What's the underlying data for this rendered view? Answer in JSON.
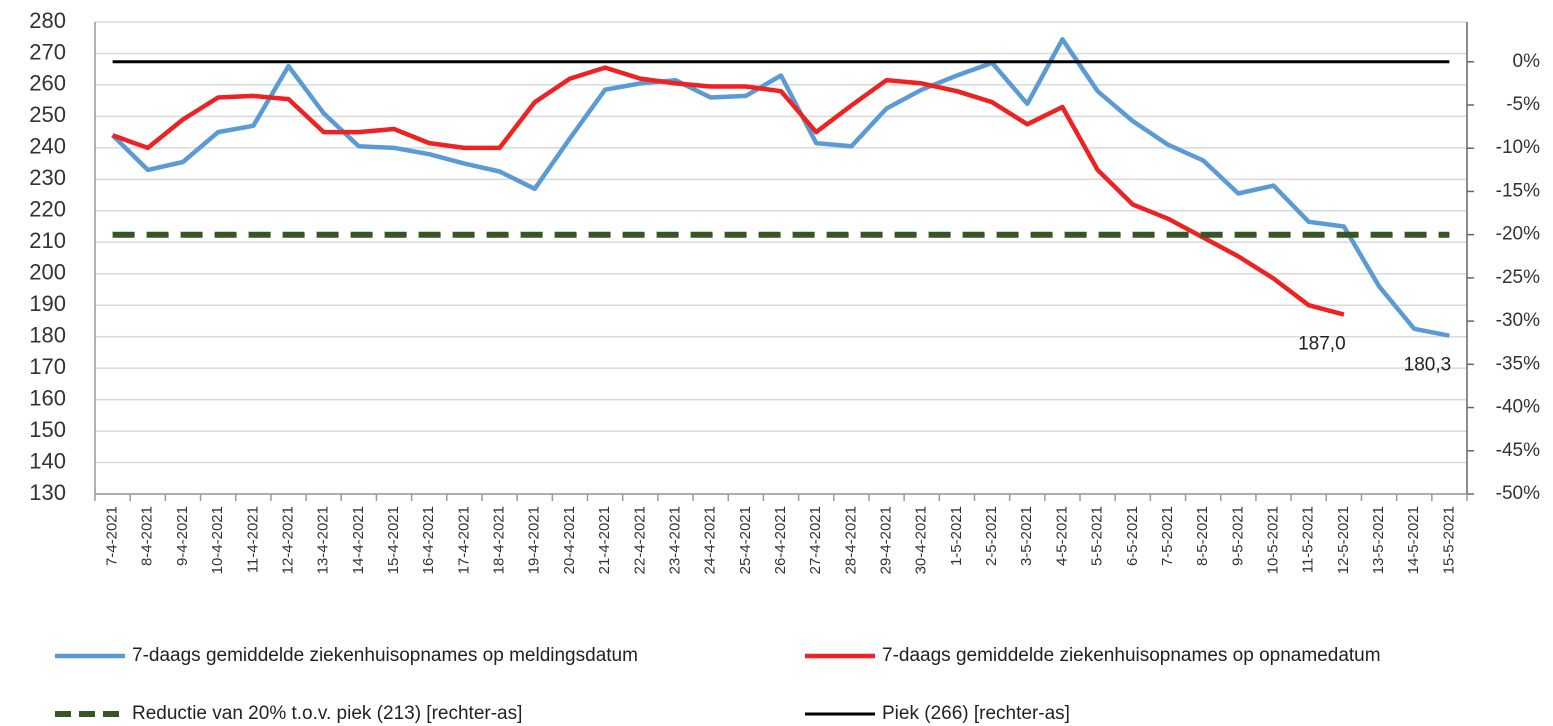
{
  "chart_data": {
    "type": "line",
    "categories": [
      "7-4-2021",
      "8-4-2021",
      "9-4-2021",
      "10-4-2021",
      "11-4-2021",
      "12-4-2021",
      "13-4-2021",
      "14-4-2021",
      "15-4-2021",
      "16-4-2021",
      "17-4-2021",
      "18-4-2021",
      "19-4-2021",
      "20-4-2021",
      "21-4-2021",
      "22-4-2021",
      "23-4-2021",
      "24-4-2021",
      "25-4-2021",
      "26-4-2021",
      "27-4-2021",
      "28-4-2021",
      "29-4-2021",
      "30-4-2021",
      "1-5-2021",
      "2-5-2021",
      "3-5-2021",
      "4-5-2021",
      "5-5-2021",
      "6-5-2021",
      "7-5-2021",
      "8-5-2021",
      "9-5-2021",
      "10-5-2021",
      "11-5-2021",
      "12-5-2021",
      "13-5-2021",
      "14-5-2021",
      "15-5-2021"
    ],
    "series": [
      {
        "name": "7-daags gemiddelde ziekenhuisopnames op meldingsdatum",
        "color": "#5b9bd5",
        "values": [
          244,
          233,
          235.5,
          245,
          247,
          266,
          251,
          240.5,
          240,
          238,
          235,
          232.5,
          227,
          243,
          258.5,
          260.5,
          261.5,
          256,
          256.5,
          263,
          241.5,
          240.5,
          252.5,
          258.5,
          263,
          267,
          254,
          274.5,
          258,
          248.5,
          241,
          236,
          225.5,
          228,
          216.5,
          215,
          196,
          182.5,
          180.3
        ],
        "value_labels": [
          null,
          null,
          null,
          null,
          null,
          null,
          null,
          null,
          null,
          null,
          null,
          null,
          null,
          null,
          null,
          null,
          null,
          null,
          null,
          null,
          null,
          null,
          null,
          null,
          null,
          null,
          null,
          null,
          null,
          null,
          null,
          null,
          null,
          null,
          null,
          null,
          null,
          null,
          "180,3"
        ]
      },
      {
        "name": "7-daags gemiddelde ziekenhuisopnames op opnamedatum",
        "color": "#ee2222",
        "values": [
          244,
          240,
          249,
          256,
          256.5,
          255.5,
          245,
          245,
          246,
          241.5,
          240,
          240,
          254.5,
          262,
          265.5,
          262,
          260.5,
          259.5,
          259.5,
          258,
          245,
          253.5,
          261.5,
          260.5,
          258,
          254.5,
          247.5,
          253,
          233,
          222,
          217.5,
          211.5,
          205.5,
          198.5,
          190,
          187.0,
          null,
          null,
          null
        ],
        "value_labels": [
          null,
          null,
          null,
          null,
          null,
          null,
          null,
          null,
          null,
          null,
          null,
          null,
          null,
          null,
          null,
          null,
          null,
          null,
          null,
          null,
          null,
          null,
          null,
          null,
          null,
          null,
          null,
          null,
          null,
          null,
          null,
          null,
          null,
          null,
          null,
          "187,0",
          null,
          null,
          null
        ]
      },
      {
        "name": "Reductie van 20% t.o.v. piek (213) [rechter-as]",
        "color": "#375623",
        "dashed": true,
        "axis": "y2",
        "values": [
          -20,
          -20,
          -20,
          -20,
          -20,
          -20,
          -20,
          -20,
          -20,
          -20,
          -20,
          -20,
          -20,
          -20,
          -20,
          -20,
          -20,
          -20,
          -20,
          -20,
          -20,
          -20,
          -20,
          -20,
          -20,
          -20,
          -20,
          -20,
          -20,
          -20,
          -20,
          -20,
          -20,
          -20,
          -20,
          -20,
          -20,
          -20,
          -20
        ]
      },
      {
        "name": "Piek (266) [rechter-as]",
        "color": "#000000",
        "axis": "y2",
        "values": [
          0,
          0,
          0,
          0,
          0,
          0,
          0,
          0,
          0,
          0,
          0,
          0,
          0,
          0,
          0,
          0,
          0,
          0,
          0,
          0,
          0,
          0,
          0,
          0,
          0,
          0,
          0,
          0,
          0,
          0,
          0,
          0,
          0,
          0,
          0,
          0,
          0,
          0,
          0
        ]
      }
    ],
    "ylim": [
      130,
      280
    ],
    "yticks": [
      130,
      140,
      150,
      160,
      170,
      180,
      190,
      200,
      210,
      220,
      230,
      240,
      250,
      260,
      270,
      280
    ],
    "y2lim": [
      -50,
      4.6
    ],
    "y2ticks": [
      {
        "value": -50,
        "label": "-50%"
      },
      {
        "value": -45,
        "label": "-45%"
      },
      {
        "value": -40,
        "label": "-40%"
      },
      {
        "value": -35,
        "label": "-35%"
      },
      {
        "value": -30,
        "label": "-30%"
      },
      {
        "value": -25,
        "label": "-25%"
      },
      {
        "value": -20,
        "label": "-20%"
      },
      {
        "value": -15,
        "label": "-15%"
      },
      {
        "value": -10,
        "label": "-10%"
      },
      {
        "value": -5,
        "label": "-5%"
      },
      {
        "value": 0,
        "label": "0%"
      }
    ],
    "grid": true,
    "legend": "bottom"
  }
}
